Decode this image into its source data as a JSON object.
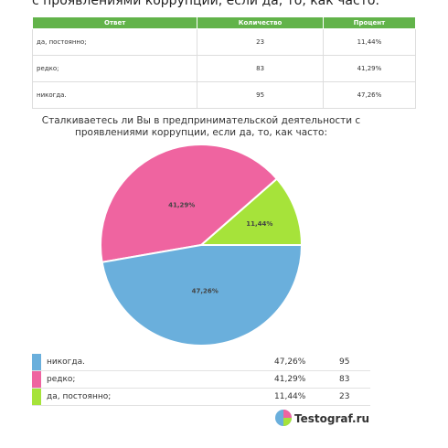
{
  "heading": "с проявлениями коррупции, если да, то, как часто:",
  "table": {
    "columns": [
      "Ответ",
      "Количество",
      "Процент"
    ],
    "rows": [
      [
        "да, постоянно;",
        "23",
        "11,44%"
      ],
      [
        "редко;",
        "83",
        "41,29%"
      ],
      [
        "никогда.",
        "95",
        "47,26%"
      ]
    ]
  },
  "chart_data": {
    "type": "pie",
    "title": "Сталкиваетесь ли Вы в предпринимательской деятельности с проявлениями коррупции, если да, то, как часто:",
    "categories": [
      "да, постоянно;",
      "редко;",
      "никогда."
    ],
    "values": [
      11.44,
      41.29,
      47.26
    ],
    "value_labels": [
      "11,44%",
      "41,29%",
      "47,26%"
    ],
    "counts": [
      23,
      83,
      95
    ],
    "colors": [
      "#a6e33a",
      "#ef64a0",
      "#6aafdc"
    ]
  },
  "brand": "Testograf.ru"
}
